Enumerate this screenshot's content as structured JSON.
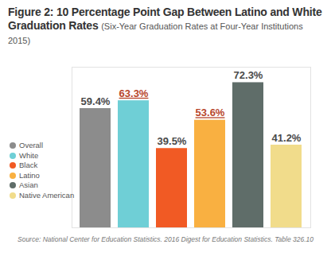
{
  "chart_data": {
    "type": "bar",
    "title": "Figure 2: 10 Percentage Point Gap Between Latino and White Graduation Rates",
    "subtitle": "(Six-Year Graduation Rates at Four-Year Institutions 2015)",
    "caption": "Source: National Center for Education Statistics. 2016 Digest for Education Statistics. Table 326.10",
    "categories": [
      "Overall",
      "White",
      "Black",
      "Latino",
      "Asian",
      "Native American"
    ],
    "values": [
      59.4,
      63.3,
      39.5,
      53.6,
      72.3,
      41.2
    ],
    "value_labels": [
      "59.4%",
      "63.3%",
      "39.5%",
      "53.6%",
      "72.3%",
      "41.2%"
    ],
    "colors": [
      "#8c8c8c",
      "#6fcfd6",
      "#f15a24",
      "#f9b041",
      "#5f6d69",
      "#f1dc8b"
    ],
    "ylim": [
      0,
      80
    ],
    "data_labels": true,
    "tick_labels": false,
    "legend": "left",
    "grid": false
  }
}
